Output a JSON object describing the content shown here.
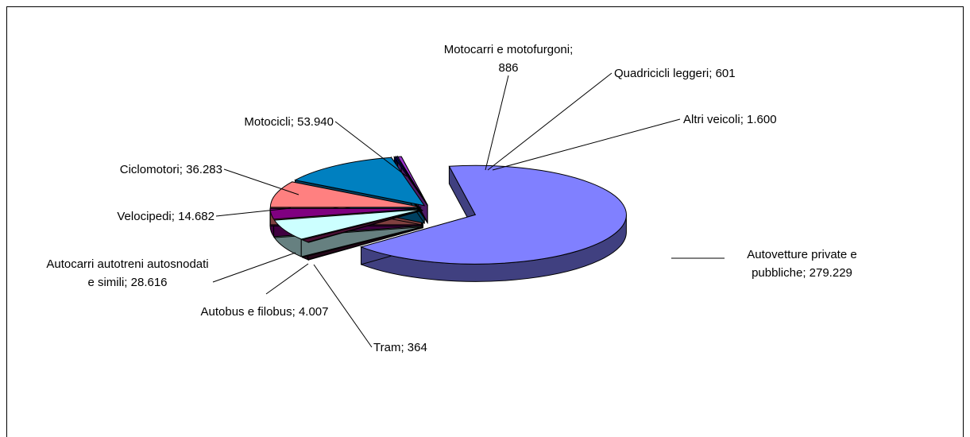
{
  "chart_data": {
    "type": "pie",
    "categories": [
      "Autovetture private e pubbliche",
      "Tram",
      "Autobus e filobus",
      "Autocarri autotreni autosnodati e simili",
      "Velocipedi",
      "Ciclomotori",
      "Motocicli",
      "Motocarri e motofurgoni",
      "Quadricicli leggeri",
      "Altri veicoli"
    ],
    "values": [
      279229,
      364,
      4007,
      28616,
      14682,
      36283,
      53940,
      886,
      601,
      1600
    ],
    "value_labels": [
      "279.229",
      "364",
      "4.007",
      "28.616",
      "14.682",
      "36.283",
      "53.940",
      "886",
      "601",
      "1.600"
    ],
    "label_separator": ";",
    "colors": [
      "#8080ff",
      "#6a1a3a",
      "#4a0f33",
      "#ccffff",
      "#800080",
      "#ff8080",
      "#0080c0",
      "#000080",
      "#333399",
      "#9933cc"
    ]
  }
}
